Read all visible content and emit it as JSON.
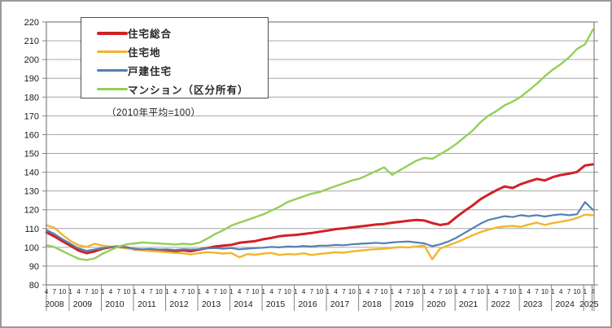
{
  "figure": {
    "subtitle": "（2010年平均=100）"
  },
  "legend": {
    "position": "top-left",
    "items": [
      {
        "label": "住宅総合",
        "color": "#D22027",
        "stroke_width": 4
      },
      {
        "label": "住宅地",
        "color": "#F2B52C",
        "stroke_width": 3.2
      },
      {
        "label": "戸建住宅",
        "color": "#5580B0",
        "stroke_width": 2.6
      },
      {
        "label": "マンション（区分所有）",
        "color": "#94CE58",
        "stroke_width": 3
      }
    ]
  },
  "chart_data": {
    "type": "line",
    "title": "",
    "xlabel": "",
    "ylabel": "",
    "note": "（2010年平均=100）",
    "grid": true,
    "legend_position": "top-left",
    "ylim": [
      80,
      220
    ],
    "yticks": [
      80,
      90,
      100,
      110,
      120,
      130,
      140,
      150,
      160,
      170,
      180,
      190,
      200,
      210,
      220
    ],
    "x_years": [
      2008,
      2009,
      2010,
      2011,
      2012,
      2013,
      2014,
      2015,
      2016,
      2017,
      2018,
      2019,
      2020,
      2021,
      2022,
      2023,
      2024,
      2025
    ],
    "x": [
      "2008-4",
      "2008-7",
      "2008-10",
      "2009-1",
      "2009-4",
      "2009-7",
      "2009-10",
      "2010-1",
      "2010-4",
      "2010-7",
      "2010-10",
      "2011-1",
      "2011-4",
      "2011-7",
      "2011-10",
      "2012-1",
      "2012-4",
      "2012-7",
      "2012-10",
      "2013-1",
      "2013-4",
      "2013-7",
      "2013-10",
      "2014-1",
      "2014-4",
      "2014-7",
      "2014-10",
      "2015-1",
      "2015-4",
      "2015-7",
      "2015-10",
      "2016-1",
      "2016-4",
      "2016-7",
      "2016-10",
      "2017-1",
      "2017-4",
      "2017-7",
      "2017-10",
      "2018-1",
      "2018-4",
      "2018-7",
      "2018-10",
      "2019-1",
      "2019-4",
      "2019-7",
      "2019-10",
      "2020-1",
      "2020-4",
      "2020-7",
      "2020-10",
      "2021-1",
      "2021-4",
      "2021-7",
      "2021-10",
      "2022-1",
      "2022-4",
      "2022-7",
      "2022-10",
      "2023-1",
      "2023-4",
      "2023-7",
      "2023-10",
      "2024-1",
      "2024-4",
      "2024-7",
      "2024-10",
      "2025-1",
      "2025-4"
    ],
    "series": [
      {
        "name": "住宅総合",
        "color": "#D22027",
        "stroke_width": 3,
        "values": [
          108.0,
          105.8,
          103.2,
          100.8,
          98.3,
          96.9,
          97.8,
          99.3,
          100.1,
          100.4,
          99.9,
          98.9,
          98.5,
          98.7,
          98.4,
          98.2,
          98.0,
          98.4,
          97.9,
          98.8,
          99.6,
          100.4,
          100.9,
          101.3,
          102.4,
          102.9,
          103.3,
          104.3,
          105.0,
          105.9,
          106.3,
          106.6,
          107.1,
          107.6,
          108.3,
          108.9,
          109.7,
          110.1,
          110.6,
          111.1,
          111.6,
          112.1,
          112.4,
          113.1,
          113.6,
          114.1,
          114.6,
          114.3,
          112.9,
          111.9,
          112.6,
          116.1,
          119.3,
          122.2,
          125.6,
          128.1,
          130.4,
          132.4,
          131.6,
          133.6,
          135.1,
          136.4,
          135.6,
          137.4,
          138.5,
          139.2,
          140.1,
          143.6,
          144.2
        ]
      },
      {
        "name": "住宅地",
        "color": "#F2B52C",
        "stroke_width": 2.4,
        "values": [
          111.8,
          110.4,
          106.6,
          103.4,
          101.1,
          100.2,
          101.9,
          100.9,
          100.4,
          100.0,
          99.4,
          99.0,
          98.4,
          98.0,
          97.7,
          97.4,
          97.0,
          96.8,
          96.2,
          96.9,
          97.4,
          97.1,
          96.7,
          97.0,
          94.7,
          96.4,
          96.1,
          96.7,
          97.0,
          95.9,
          96.4,
          96.2,
          96.8,
          95.9,
          96.5,
          96.9,
          97.4,
          97.1,
          97.8,
          98.2,
          98.7,
          99.0,
          99.2,
          99.7,
          100.1,
          99.9,
          100.4,
          100.9,
          93.6,
          99.4,
          101.0,
          102.6,
          104.4,
          106.4,
          108.1,
          109.4,
          110.5,
          111.1,
          111.4,
          110.9,
          112.1,
          113.1,
          111.9,
          112.9,
          113.6,
          114.4,
          115.6,
          117.4,
          117.1
        ]
      },
      {
        "name": "戸建住宅",
        "color": "#5580B0",
        "stroke_width": 2.2,
        "values": [
          109.2,
          107.1,
          104.3,
          101.9,
          99.4,
          98.1,
          98.9,
          99.6,
          100.1,
          100.3,
          99.9,
          99.2,
          98.9,
          99.1,
          98.8,
          98.9,
          98.6,
          99.0,
          98.8,
          99.0,
          99.4,
          99.6,
          99.3,
          99.6,
          98.9,
          99.3,
          99.6,
          99.8,
          100.2,
          100.0,
          100.4,
          100.3,
          100.7,
          100.4,
          100.9,
          100.9,
          101.3,
          101.1,
          101.6,
          101.9,
          102.1,
          102.4,
          102.1,
          102.6,
          102.9,
          103.1,
          102.6,
          102.1,
          100.6,
          101.6,
          103.1,
          105.1,
          107.6,
          110.1,
          112.6,
          114.6,
          115.6,
          116.6,
          116.1,
          117.1,
          116.6,
          117.1,
          116.4,
          117.1,
          117.6,
          117.1,
          117.6,
          124.1,
          119.9
        ]
      },
      {
        "name": "マンション（区分所有）",
        "color": "#94CE58",
        "stroke_width": 2.4,
        "values": [
          101.1,
          100.1,
          98.0,
          95.9,
          93.9,
          93.2,
          94.1,
          96.6,
          98.6,
          100.4,
          101.6,
          102.1,
          102.6,
          102.3,
          102.0,
          101.8,
          101.5,
          101.9,
          101.6,
          102.4,
          104.6,
          107.1,
          109.1,
          111.6,
          113.1,
          114.6,
          116.1,
          117.6,
          119.6,
          121.6,
          124.1,
          125.6,
          127.1,
          128.6,
          129.4,
          131.1,
          132.6,
          134.1,
          135.6,
          136.6,
          138.6,
          140.6,
          142.6,
          138.6,
          141.1,
          143.6,
          146.1,
          147.6,
          147.1,
          149.6,
          152.1,
          155.1,
          158.6,
          162.1,
          166.6,
          170.1,
          172.6,
          175.6,
          177.6,
          180.1,
          183.6,
          187.1,
          191.1,
          194.6,
          197.6,
          201.1,
          205.6,
          208.1,
          216.0
        ]
      }
    ]
  },
  "colors": {
    "grid": "#a6a6a6",
    "axis": "#808080",
    "text": "#1a1a1a"
  }
}
